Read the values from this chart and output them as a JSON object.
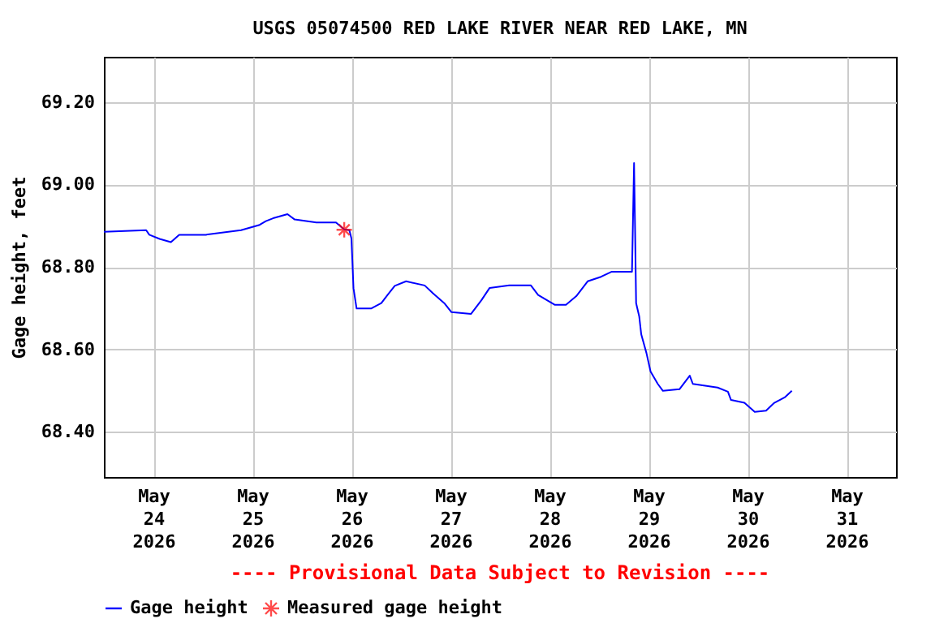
{
  "chart_data": {
    "type": "line",
    "title": "USGS 05074500 RED LAKE RIVER NEAR RED LAKE, MN",
    "ylabel": "Gage height, feet",
    "annotations": [
      "---- Provisional Data Subject to Revision ----"
    ],
    "xlim": [
      "2026-05-23T12:00",
      "2026-05-31T12:00"
    ],
    "xticks": [
      {
        "value": "2026-05-24T00:00",
        "label": "May\n24\n2026"
      },
      {
        "value": "2026-05-25T00:00",
        "label": "May\n25\n2026"
      },
      {
        "value": "2026-05-26T00:00",
        "label": "May\n26\n2026"
      },
      {
        "value": "2026-05-27T00:00",
        "label": "May\n27\n2026"
      },
      {
        "value": "2026-05-28T00:00",
        "label": "May\n28\n2026"
      },
      {
        "value": "2026-05-29T00:00",
        "label": "May\n29\n2026"
      },
      {
        "value": "2026-05-30T00:00",
        "label": "May\n30\n2026"
      },
      {
        "value": "2026-05-31T00:00",
        "label": "May\n31\n2026"
      }
    ],
    "ylim": [
      68.29,
      69.31
    ],
    "yticks": [
      {
        "value": 68.4,
        "label": "68.40"
      },
      {
        "value": 68.6,
        "label": "68.60"
      },
      {
        "value": 68.8,
        "label": "68.80"
      },
      {
        "value": 69.0,
        "label": "69.00"
      },
      {
        "value": 69.2,
        "label": "69.20"
      }
    ],
    "grid": true,
    "legend": "bottom",
    "series": [
      {
        "name": "Gage height",
        "color": "#0000ff",
        "marker": "none",
        "x": [
          "2026-05-23T12:00",
          "2026-05-23T22:15",
          "2026-05-23T23:00",
          "2026-05-24T01:30",
          "2026-05-24T04:15",
          "2026-05-24T06:15",
          "2026-05-24T12:45",
          "2026-05-24T21:15",
          "2026-05-25T01:45",
          "2026-05-25T03:15",
          "2026-05-25T05:00",
          "2026-05-25T08:30",
          "2026-05-25T10:15",
          "2026-05-25T15:30",
          "2026-05-25T20:15",
          "2026-05-25T22:15",
          "2026-05-25T23:30",
          "2026-05-26T00:00",
          "2026-05-26T00:30",
          "2026-05-26T01:15",
          "2026-05-26T04:45",
          "2026-05-26T07:15",
          "2026-05-26T08:45",
          "2026-05-26T10:30",
          "2026-05-26T13:15",
          "2026-05-26T17:45",
          "2026-05-26T19:45",
          "2026-05-26T22:30",
          "2026-05-27T00:15",
          "2026-05-27T05:00",
          "2026-05-27T07:30",
          "2026-05-27T09:30",
          "2026-05-27T14:15",
          "2026-05-27T19:30",
          "2026-05-27T21:15",
          "2026-05-28T01:15",
          "2026-05-28T04:00",
          "2026-05-28T06:30",
          "2026-05-28T09:15",
          "2026-05-28T12:30",
          "2026-05-28T15:00",
          "2026-05-28T20:00",
          "2026-05-28T20:30",
          "2026-05-28T20:45",
          "2026-05-28T21:00",
          "2026-05-28T21:45",
          "2026-05-28T22:15",
          "2026-05-28T23:30",
          "2026-05-29T00:30",
          "2026-05-29T02:15",
          "2026-05-29T03:30",
          "2026-05-29T07:30",
          "2026-05-29T10:00",
          "2026-05-29T10:45",
          "2026-05-29T16:45",
          "2026-05-29T19:15",
          "2026-05-29T20:00",
          "2026-05-29T23:15",
          "2026-05-30T01:45",
          "2026-05-30T04:30",
          "2026-05-30T06:30",
          "2026-05-30T09:00",
          "2026-05-30T10:45"
        ],
        "values": [
          68.885,
          68.889,
          68.878,
          68.868,
          68.86,
          68.878,
          68.878,
          68.889,
          68.902,
          68.911,
          68.918,
          68.928,
          68.915,
          68.908,
          68.908,
          68.891,
          68.889,
          68.869,
          68.748,
          68.699,
          68.699,
          68.712,
          68.732,
          68.754,
          68.765,
          68.755,
          68.736,
          68.712,
          68.69,
          68.686,
          68.719,
          68.749,
          68.755,
          68.755,
          68.732,
          68.708,
          68.708,
          68.729,
          68.765,
          68.776,
          68.788,
          68.788,
          69.052,
          68.889,
          68.712,
          68.68,
          68.636,
          68.591,
          68.546,
          68.516,
          68.499,
          68.503,
          68.536,
          68.516,
          68.507,
          68.497,
          68.477,
          68.47,
          68.448,
          68.451,
          68.47,
          68.483,
          68.499
        ]
      },
      {
        "name": "Measured gage height",
        "color": "#ff0000",
        "type": "scatter",
        "marker": "cross",
        "x": [
          "2026-05-25T22:15"
        ],
        "values": [
          68.89
        ]
      }
    ]
  }
}
